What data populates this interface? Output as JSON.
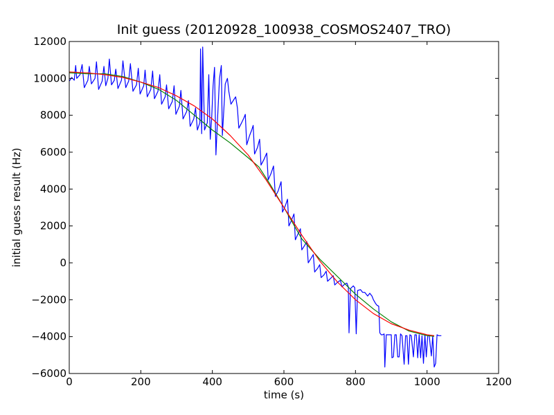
{
  "chart_data": {
    "type": "line",
    "title": "Init guess (20120928_100938_COSMOS2407_TRO)",
    "xlabel": "time (s)",
    "ylabel": "initial guess result (Hz)",
    "xlim": [
      0,
      1200
    ],
    "ylim": [
      -6000,
      12000
    ],
    "xticks": [
      0,
      200,
      400,
      600,
      800,
      1000,
      1200
    ],
    "yticks": [
      -6000,
      -4000,
      -2000,
      0,
      2000,
      4000,
      6000,
      8000,
      10000,
      12000
    ],
    "grid": false,
    "legend": "none",
    "series": [
      {
        "color": "#0000ff",
        "points": [
          [
            0,
            9850
          ],
          [
            7,
            10050
          ],
          [
            14,
            9900
          ],
          [
            18,
            10700
          ],
          [
            21,
            10000
          ],
          [
            30,
            10200
          ],
          [
            36,
            10750
          ],
          [
            42,
            9500
          ],
          [
            52,
            9900
          ],
          [
            56,
            10650
          ],
          [
            62,
            9700
          ],
          [
            72,
            10000
          ],
          [
            76,
            10900
          ],
          [
            82,
            9400
          ],
          [
            92,
            9850
          ],
          [
            97,
            10650
          ],
          [
            102,
            9600
          ],
          [
            108,
            10000
          ],
          [
            112,
            11050
          ],
          [
            118,
            9650
          ],
          [
            126,
            9900
          ],
          [
            130,
            10500
          ],
          [
            136,
            9450
          ],
          [
            146,
            9900
          ],
          [
            150,
            10950
          ],
          [
            158,
            9500
          ],
          [
            166,
            9850
          ],
          [
            171,
            10800
          ],
          [
            178,
            9300
          ],
          [
            188,
            9650
          ],
          [
            193,
            10550
          ],
          [
            198,
            9150
          ],
          [
            208,
            9600
          ],
          [
            212,
            10450
          ],
          [
            218,
            9000
          ],
          [
            228,
            9400
          ],
          [
            233,
            10400
          ],
          [
            238,
            8900
          ],
          [
            248,
            9300
          ],
          [
            253,
            10200
          ],
          [
            258,
            8600
          ],
          [
            268,
            9000
          ],
          [
            272,
            9650
          ],
          [
            278,
            8350
          ],
          [
            288,
            8750
          ],
          [
            293,
            9600
          ],
          [
            298,
            8050
          ],
          [
            308,
            8500
          ],
          [
            312,
            9350
          ],
          [
            318,
            7800
          ],
          [
            328,
            8200
          ],
          [
            333,
            8800
          ],
          [
            338,
            7400
          ],
          [
            348,
            7800
          ],
          [
            353,
            8400
          ],
          [
            358,
            7200
          ],
          [
            365,
            7600
          ],
          [
            367,
            11600
          ],
          [
            370,
            7000
          ],
          [
            373,
            11700
          ],
          [
            378,
            7200
          ],
          [
            386,
            7600
          ],
          [
            390,
            10200
          ],
          [
            394,
            6700
          ],
          [
            398,
            7800
          ],
          [
            402,
            9600
          ],
          [
            406,
            10600
          ],
          [
            410,
            5850
          ],
          [
            415,
            8000
          ],
          [
            420,
            10000
          ],
          [
            425,
            10700
          ],
          [
            428,
            6900
          ],
          [
            436,
            9700
          ],
          [
            442,
            10000
          ],
          [
            446,
            9300
          ],
          [
            452,
            8600
          ],
          [
            460,
            8850
          ],
          [
            465,
            9000
          ],
          [
            470,
            8400
          ],
          [
            474,
            7300
          ],
          [
            482,
            7600
          ],
          [
            488,
            7850
          ],
          [
            492,
            8050
          ],
          [
            496,
            6400
          ],
          [
            504,
            6900
          ],
          [
            510,
            7200
          ],
          [
            514,
            7450
          ],
          [
            518,
            5900
          ],
          [
            526,
            6250
          ],
          [
            532,
            6700
          ],
          [
            536,
            5300
          ],
          [
            544,
            5600
          ],
          [
            552,
            5950
          ],
          [
            556,
            4500
          ],
          [
            564,
            4850
          ],
          [
            571,
            5250
          ],
          [
            576,
            3600
          ],
          [
            584,
            3900
          ],
          [
            592,
            4400
          ],
          [
            596,
            2750
          ],
          [
            604,
            3100
          ],
          [
            610,
            3450
          ],
          [
            614,
            2000
          ],
          [
            622,
            2350
          ],
          [
            628,
            2650
          ],
          [
            632,
            1250
          ],
          [
            640,
            1600
          ],
          [
            646,
            1850
          ],
          [
            650,
            700
          ],
          [
            658,
            950
          ],
          [
            664,
            1150
          ],
          [
            668,
            0
          ],
          [
            676,
            250
          ],
          [
            682,
            450
          ],
          [
            686,
            -500
          ],
          [
            694,
            -300
          ],
          [
            700,
            -100
          ],
          [
            704,
            -800
          ],
          [
            712,
            -650
          ],
          [
            718,
            -450
          ],
          [
            722,
            -1000
          ],
          [
            730,
            -850
          ],
          [
            738,
            -700
          ],
          [
            742,
            -1200
          ],
          [
            750,
            -1050
          ],
          [
            758,
            -950
          ],
          [
            762,
            -1300
          ],
          [
            770,
            -1150
          ],
          [
            776,
            -1100
          ],
          [
            780,
            -1300
          ],
          [
            782,
            -3800
          ],
          [
            786,
            -1400
          ],
          [
            794,
            -1250
          ],
          [
            798,
            -1350
          ],
          [
            802,
            -3850
          ],
          [
            806,
            -1500
          ],
          [
            814,
            -1450
          ],
          [
            820,
            -1600
          ],
          [
            826,
            -1600
          ],
          [
            834,
            -1800
          ],
          [
            840,
            -1650
          ],
          [
            846,
            -1800
          ],
          [
            850,
            -2000
          ],
          [
            856,
            -2200
          ],
          [
            860,
            -2300
          ],
          [
            865,
            -2350
          ],
          [
            868,
            -3800
          ],
          [
            872,
            -3900
          ],
          [
            876,
            -3900
          ],
          [
            880,
            -3850
          ],
          [
            882,
            -5650
          ],
          [
            886,
            -3900
          ],
          [
            894,
            -3900
          ],
          [
            900,
            -3900
          ],
          [
            902,
            -5150
          ],
          [
            906,
            -5100
          ],
          [
            910,
            -3900
          ],
          [
            914,
            -3900
          ],
          [
            918,
            -5100
          ],
          [
            922,
            -5100
          ],
          [
            926,
            -3850
          ],
          [
            930,
            -3950
          ],
          [
            936,
            -5500
          ],
          [
            940,
            -3950
          ],
          [
            944,
            -3950
          ],
          [
            948,
            -5500
          ],
          [
            952,
            -3900
          ],
          [
            956,
            -3950
          ],
          [
            962,
            -5100
          ],
          [
            966,
            -3900
          ],
          [
            970,
            -3900
          ],
          [
            974,
            -5150
          ],
          [
            978,
            -3900
          ],
          [
            982,
            -5150
          ],
          [
            986,
            -3950
          ],
          [
            990,
            -5450
          ],
          [
            994,
            -3900
          ],
          [
            998,
            -5100
          ],
          [
            1002,
            -3950
          ],
          [
            1006,
            -3950
          ],
          [
            1012,
            -5050
          ],
          [
            1016,
            -3950
          ],
          [
            1020,
            -5650
          ],
          [
            1024,
            -5450
          ],
          [
            1028,
            -3900
          ],
          [
            1032,
            -3950
          ],
          [
            1040,
            -3950
          ]
        ]
      },
      {
        "color": "#008000",
        "points": [
          [
            0,
            10300
          ],
          [
            50,
            10250
          ],
          [
            100,
            10250
          ],
          [
            150,
            10100
          ],
          [
            200,
            9800
          ],
          [
            250,
            9400
          ],
          [
            300,
            8800
          ],
          [
            350,
            8000
          ],
          [
            400,
            7200
          ],
          [
            450,
            6500
          ],
          [
            500,
            5700
          ],
          [
            530,
            5200
          ],
          [
            560,
            4300
          ],
          [
            600,
            3000
          ],
          [
            650,
            1300
          ],
          [
            700,
            200
          ],
          [
            750,
            -750
          ],
          [
            800,
            -1700
          ],
          [
            850,
            -2500
          ],
          [
            900,
            -3200
          ],
          [
            950,
            -3700
          ],
          [
            1000,
            -3950
          ],
          [
            1020,
            -3980
          ]
        ]
      },
      {
        "color": "#ff0000",
        "points": [
          [
            0,
            10350
          ],
          [
            50,
            10300
          ],
          [
            100,
            10200
          ],
          [
            150,
            10050
          ],
          [
            200,
            9800
          ],
          [
            250,
            9500
          ],
          [
            300,
            9050
          ],
          [
            350,
            8500
          ],
          [
            400,
            7800
          ],
          [
            450,
            6900
          ],
          [
            500,
            5850
          ],
          [
            550,
            4500
          ],
          [
            600,
            3000
          ],
          [
            650,
            1500
          ],
          [
            700,
            100
          ],
          [
            750,
            -1050
          ],
          [
            800,
            -2000
          ],
          [
            850,
            -2750
          ],
          [
            900,
            -3300
          ],
          [
            950,
            -3650
          ],
          [
            1000,
            -3900
          ],
          [
            1020,
            -3950
          ]
        ]
      }
    ]
  }
}
